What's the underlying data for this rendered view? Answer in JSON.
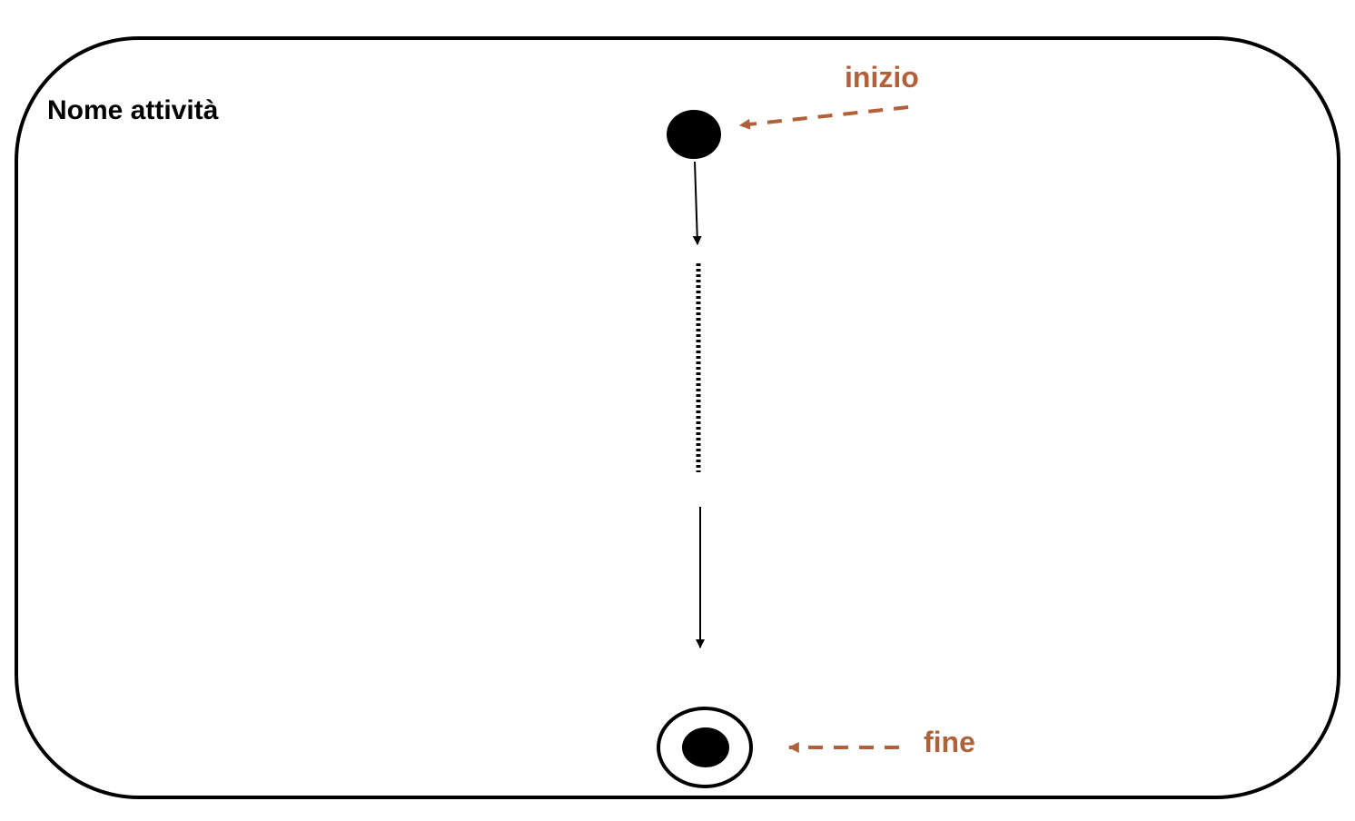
{
  "activity": {
    "title": "Nome attività"
  },
  "annotations": {
    "start_label": "inizio",
    "end_label": "fine"
  },
  "colors": {
    "annotation": "#B0613A",
    "stroke": "#000000",
    "background": "#FFFFFF"
  }
}
